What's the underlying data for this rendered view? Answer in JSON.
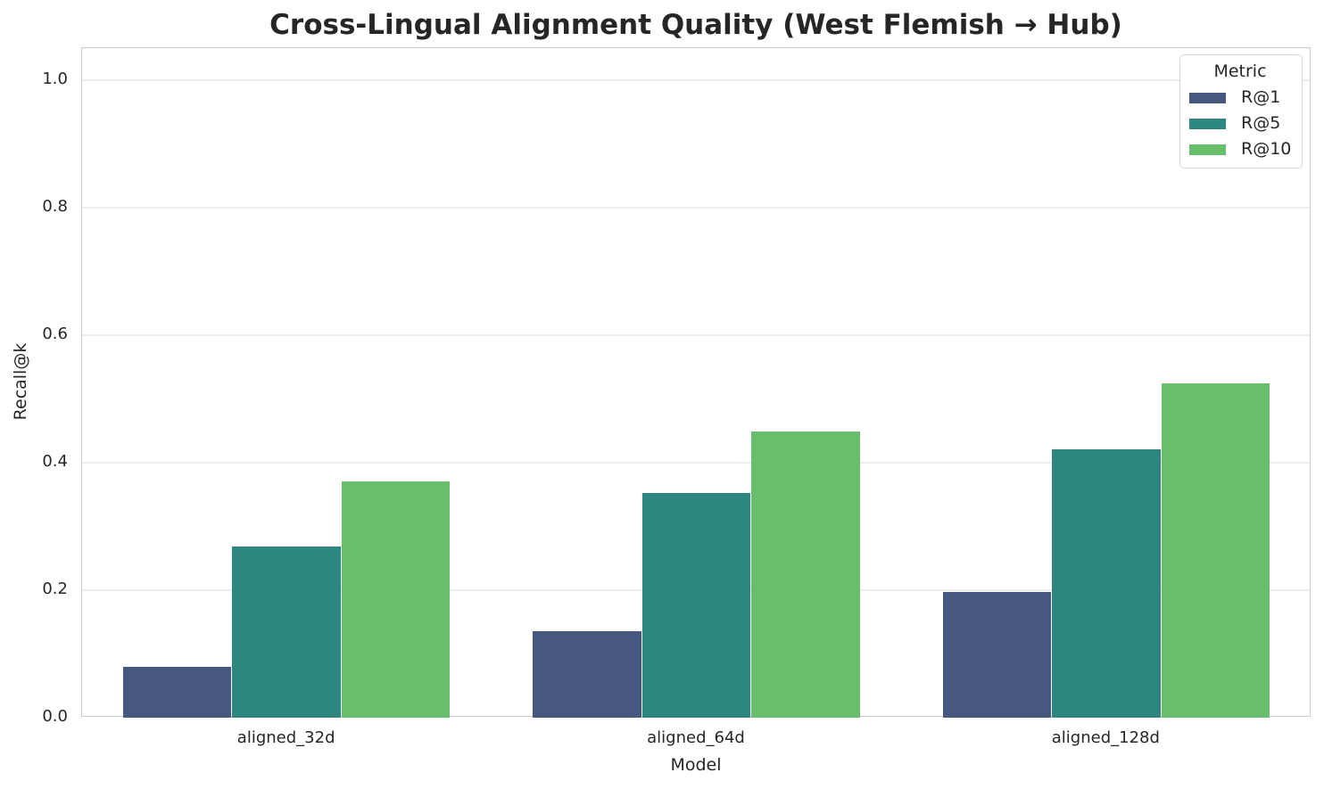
{
  "title": "Cross-Lingual Alignment Quality (West Flemish → Hub)",
  "chart_data": {
    "type": "bar",
    "categories": [
      "aligned_32d",
      "aligned_64d",
      "aligned_128d"
    ],
    "series": [
      {
        "name": "R@1",
        "color": "#46587f",
        "values": [
          0.08,
          0.135,
          0.197
        ]
      },
      {
        "name": "R@5",
        "color": "#2e8681",
        "values": [
          0.268,
          0.352,
          0.421
        ]
      },
      {
        "name": "R@10",
        "color": "#68be6d",
        "values": [
          0.371,
          0.449,
          0.524
        ]
      }
    ],
    "xlabel": "Model",
    "ylabel": "Recall@k",
    "ylim": [
      0,
      1.05
    ],
    "yticks": [
      0.0,
      0.2,
      0.4,
      0.6,
      0.8,
      1.0
    ],
    "ytick_labels": [
      "0.0",
      "0.2",
      "0.4",
      "0.6",
      "0.8",
      "1.0"
    ],
    "legend_title": "Metric",
    "legend_position": "upper right",
    "grid": true,
    "grid_color": "#ececec",
    "spine_color": "#cbcbcb",
    "text_color": "#262626",
    "background_color": "#ffffff"
  }
}
